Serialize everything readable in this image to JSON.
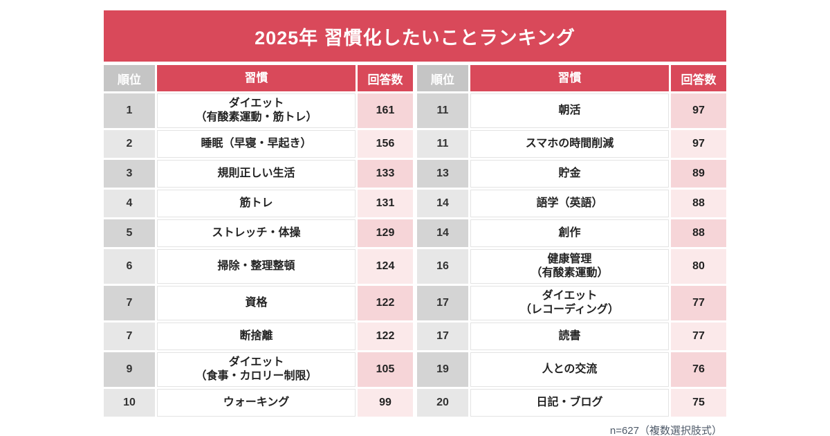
{
  "page": {
    "title": "2025年 習慣化したいことランキング",
    "footnote": "n=627（複数選択肢式）"
  },
  "table": {
    "headers": {
      "rank": "順位",
      "habit": "習慣",
      "count": "回答数"
    }
  },
  "colors": {
    "accent_red": "#d9495a",
    "header_gray": "#c5c5c5",
    "rank_row_odd": "#d4d4d4",
    "rank_row_even": "#e7e7e7",
    "count_row_odd": "#f6d5d8",
    "count_row_even": "#fbe9ea"
  },
  "chart_data": {
    "type": "table",
    "title": "2025年 習慣化したいことランキング",
    "columns": [
      "順位",
      "習慣",
      "回答数"
    ],
    "note": "n=627（複数選択肢式）",
    "left_rows": [
      {
        "rank": "1",
        "habit": "ダイエット\n（有酸素運動・筋トレ）",
        "count": "161"
      },
      {
        "rank": "2",
        "habit": "睡眠（早寝・早起き）",
        "count": "156"
      },
      {
        "rank": "3",
        "habit": "規則正しい生活",
        "count": "133"
      },
      {
        "rank": "4",
        "habit": "筋トレ",
        "count": "131"
      },
      {
        "rank": "5",
        "habit": "ストレッチ・体操",
        "count": "129"
      },
      {
        "rank": "6",
        "habit": "掃除・整理整頓",
        "count": "124"
      },
      {
        "rank": "7",
        "habit": "資格",
        "count": "122"
      },
      {
        "rank": "7",
        "habit": "断捨離",
        "count": "122"
      },
      {
        "rank": "9",
        "habit": "ダイエット\n（食事・カロリー制限）",
        "count": "105"
      },
      {
        "rank": "10",
        "habit": "ウォーキング",
        "count": "99"
      }
    ],
    "right_rows": [
      {
        "rank": "11",
        "habit": "朝活",
        "count": "97"
      },
      {
        "rank": "11",
        "habit": "スマホの時間削減",
        "count": "97"
      },
      {
        "rank": "13",
        "habit": "貯金",
        "count": "89"
      },
      {
        "rank": "14",
        "habit": "語学（英語）",
        "count": "88"
      },
      {
        "rank": "14",
        "habit": "創作",
        "count": "88"
      },
      {
        "rank": "16",
        "habit": "健康管理\n（有酸素運動）",
        "count": "80"
      },
      {
        "rank": "17",
        "habit": "ダイエット\n（レコーディング）",
        "count": "77"
      },
      {
        "rank": "17",
        "habit": "読書",
        "count": "77"
      },
      {
        "rank": "19",
        "habit": "人との交流",
        "count": "76"
      },
      {
        "rank": "20",
        "habit": "日記・ブログ",
        "count": "75"
      }
    ]
  }
}
